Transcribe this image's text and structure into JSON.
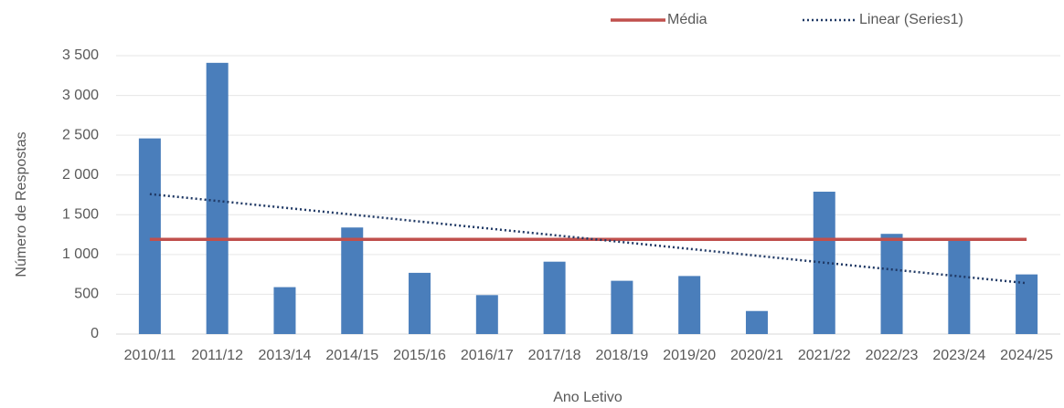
{
  "chart_data": {
    "type": "bar",
    "x_label": "Ano Letivo",
    "y_label": "Número de Respostas",
    "categories": [
      "2010/11",
      "2011/12",
      "2013/14",
      "2014/15",
      "2015/16",
      "2016/17",
      "2017/18",
      "2018/19",
      "2019/20",
      "2020/21",
      "2021/22",
      "2022/23",
      "2023/24",
      "2024/25"
    ],
    "series": [
      {
        "type": "bar",
        "color": "#4a7ebb",
        "values": [
          2460,
          3410,
          590,
          1340,
          770,
          490,
          910,
          670,
          730,
          290,
          1790,
          1260,
          1200,
          750
        ]
      },
      {
        "type": "line",
        "name": "Média",
        "color": "#c0504d",
        "line_style": "solid",
        "values": [
          1190,
          1190,
          1190,
          1190,
          1190,
          1190,
          1190,
          1190,
          1190,
          1190,
          1190,
          1190,
          1190,
          1190
        ]
      },
      {
        "type": "line",
        "name": "Linear (Series1)",
        "color": "#1f3864",
        "line_style": "dotted",
        "values": [
          1760,
          1674,
          1588,
          1502,
          1415,
          1329,
          1243,
          1157,
          1071,
          985,
          898,
          812,
          726,
          640
        ]
      }
    ],
    "ylim": [
      0,
      3500
    ],
    "yticks": [
      0,
      500,
      {
        "value": 1000,
        "label": "1 000"
      },
      {
        "value": 1500,
        "label": "1 500"
      },
      {
        "value": 2000,
        "label": "2 000"
      },
      {
        "value": 2500,
        "label": "2 500"
      },
      {
        "value": 3000,
        "label": "3 000"
      },
      {
        "value": 3500,
        "label": "3 500"
      }
    ],
    "grid": true,
    "legend": "top-right"
  }
}
